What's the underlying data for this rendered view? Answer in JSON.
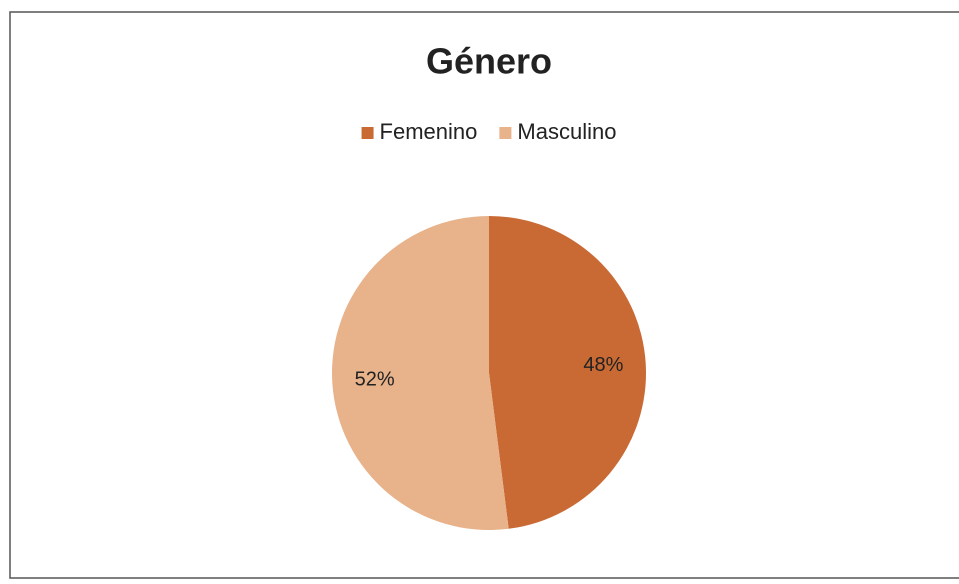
{
  "chart_data": {
    "type": "pie",
    "title": "Género",
    "categories": [
      "Femenino",
      "Masculino"
    ],
    "values": [
      48,
      52
    ],
    "value_labels": [
      "48%",
      "52%"
    ],
    "colors": [
      "#c96a35",
      "#e8b28b"
    ],
    "legend": "top"
  }
}
